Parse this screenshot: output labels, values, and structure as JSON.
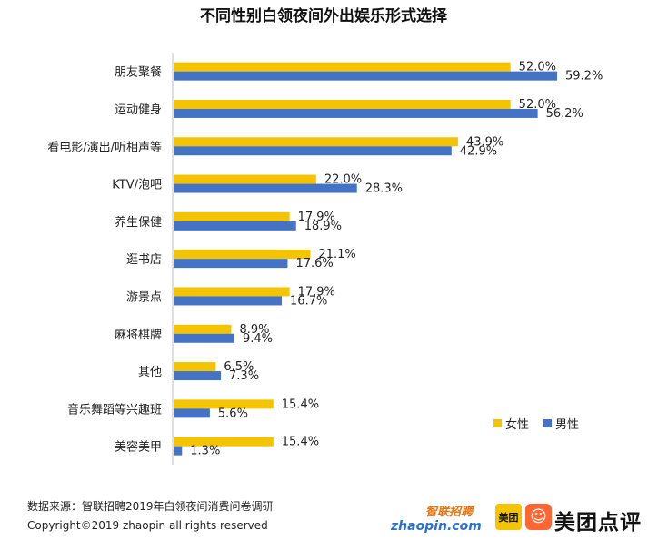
{
  "chart_data": {
    "type": "bar",
    "orientation": "horizontal",
    "title": "不同性别白领夜间外出娱乐形式选择",
    "categories": [
      "朋友聚餐",
      "运动健身",
      "看电影/演出/听相声等",
      "KTV/泡吧",
      "养生保健",
      "逛书店",
      "游景点",
      "麻将棋牌",
      "其他",
      "音乐舞蹈等兴趣班",
      "美容美甲"
    ],
    "series": [
      {
        "name": "女性",
        "color": "#f5c400",
        "values": [
          52.0,
          52.0,
          43.9,
          22.0,
          17.9,
          21.1,
          17.9,
          8.9,
          6.5,
          15.4,
          15.4
        ]
      },
      {
        "name": "男性",
        "color": "#4472c4",
        "values": [
          59.2,
          56.2,
          42.9,
          28.3,
          18.9,
          17.6,
          16.7,
          9.4,
          7.3,
          5.6,
          1.3
        ]
      }
    ],
    "value_suffix": "%",
    "xlim": [
      0,
      60
    ],
    "grid": false,
    "legend_position": "bottom-right"
  },
  "footer": {
    "source": "数据来源：智联招聘2019年白领夜间消费问卷调研",
    "copyright": "Copyright©2019  zhaopin  all  rights  reserved"
  },
  "logos": {
    "zhaopin_cn": "智联招聘",
    "zhaopin_en": "zhaopin.com",
    "meituan": "美团",
    "dianping": "美团点评"
  }
}
